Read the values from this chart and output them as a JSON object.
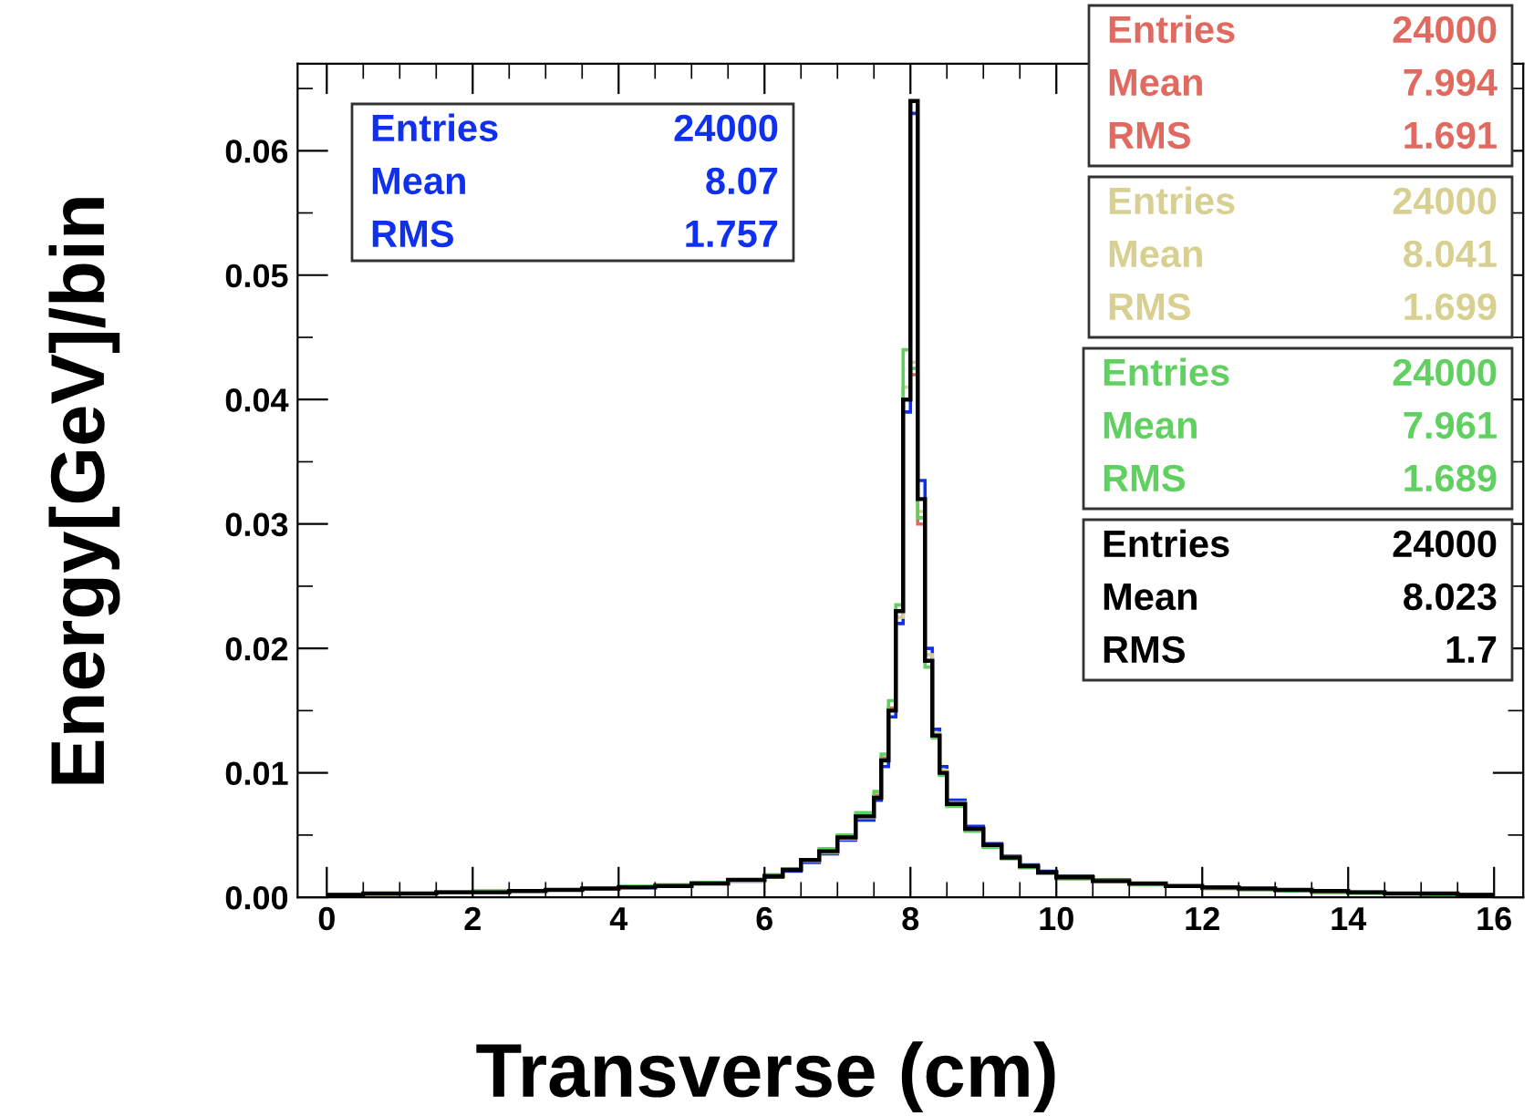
{
  "chart_data": {
    "type": "histogram",
    "xlabel": "Transverse (cm)",
    "ylabel": "Energy[GeV]/bin",
    "bins": [
      0,
      0.5,
      1,
      1.5,
      2,
      2.5,
      3,
      3.5,
      4,
      4.5,
      5,
      5.5,
      6,
      6.25,
      6.5,
      6.75,
      7,
      7.25,
      7.5,
      7.6,
      7.7,
      7.8,
      7.9,
      8.0,
      8.1,
      8.2,
      8.3,
      8.4,
      8.5,
      8.75,
      9,
      9.25,
      9.5,
      9.75,
      10,
      10.5,
      11,
      11.5,
      12,
      12.5,
      13,
      13.5,
      14,
      14.5,
      15,
      15.5,
      16
    ],
    "series": [
      {
        "color": "#1030f0",
        "values": [
          0.0002,
          0.0003,
          0.0003,
          0.0004,
          0.0004,
          0.0005,
          0.0006,
          0.0007,
          0.0008,
          0.0009,
          0.0011,
          0.0013,
          0.0016,
          0.0021,
          0.0028,
          0.0035,
          0.0046,
          0.0062,
          0.0078,
          0.0105,
          0.0145,
          0.022,
          0.039,
          0.063,
          0.0335,
          0.02,
          0.0135,
          0.0105,
          0.0078,
          0.0057,
          0.0043,
          0.0033,
          0.0026,
          0.0021,
          0.0017,
          0.0014,
          0.0011,
          0.0009,
          0.0008,
          0.0007,
          0.0006,
          0.0005,
          0.0004,
          0.0003,
          0.0003,
          0.0002
        ]
      },
      {
        "color": "#e06a60",
        "values": [
          0.0002,
          0.0003,
          0.0003,
          0.0004,
          0.0005,
          0.0005,
          0.0006,
          0.0007,
          0.0008,
          0.001,
          0.0011,
          0.0014,
          0.0018,
          0.0023,
          0.003,
          0.0038,
          0.0049,
          0.0066,
          0.0082,
          0.0112,
          0.0152,
          0.023,
          0.04,
          0.042,
          0.03,
          0.019,
          0.013,
          0.01,
          0.0074,
          0.0054,
          0.0041,
          0.0031,
          0.0024,
          0.0019,
          0.0015,
          0.0013,
          0.0011,
          0.0009,
          0.0007,
          0.0006,
          0.0005,
          0.0004,
          0.0004,
          0.0003,
          0.0002,
          0.0002
        ]
      },
      {
        "color": "#d8d090",
        "values": [
          0.0002,
          0.0002,
          0.0003,
          0.0004,
          0.0004,
          0.0005,
          0.0006,
          0.0007,
          0.0008,
          0.0009,
          0.0011,
          0.0013,
          0.0017,
          0.0022,
          0.0029,
          0.0036,
          0.0047,
          0.0064,
          0.008,
          0.011,
          0.015,
          0.0225,
          0.041,
          0.043,
          0.031,
          0.0195,
          0.0132,
          0.0102,
          0.0076,
          0.0055,
          0.0042,
          0.0032,
          0.0025,
          0.002,
          0.0016,
          0.0013,
          0.0011,
          0.0009,
          0.0008,
          0.0006,
          0.0005,
          0.0004,
          0.0004,
          0.0003,
          0.0003,
          0.0002
        ]
      },
      {
        "color": "#60d060",
        "values": [
          0.0002,
          0.0003,
          0.0003,
          0.0004,
          0.0005,
          0.0005,
          0.0006,
          0.0007,
          0.0009,
          0.001,
          0.0012,
          0.0014,
          0.0018,
          0.0023,
          0.003,
          0.0039,
          0.005,
          0.0068,
          0.0085,
          0.0115,
          0.0158,
          0.0235,
          0.044,
          0.0425,
          0.0305,
          0.0185,
          0.0128,
          0.0098,
          0.0073,
          0.0053,
          0.004,
          0.0031,
          0.0024,
          0.0019,
          0.0015,
          0.0013,
          0.001,
          0.0009,
          0.0007,
          0.0006,
          0.0005,
          0.0004,
          0.0003,
          0.0003,
          0.0002,
          0.0002
        ]
      },
      {
        "color": "#000000",
        "values": [
          0.0002,
          0.0003,
          0.0003,
          0.0004,
          0.0004,
          0.0005,
          0.0006,
          0.0007,
          0.0008,
          0.0009,
          0.0011,
          0.0014,
          0.0017,
          0.0022,
          0.003,
          0.0037,
          0.0048,
          0.0065,
          0.008,
          0.011,
          0.015,
          0.023,
          0.04,
          0.064,
          0.032,
          0.019,
          0.013,
          0.01,
          0.0075,
          0.0055,
          0.0042,
          0.0032,
          0.0025,
          0.002,
          0.0016,
          0.0013,
          0.0011,
          0.0009,
          0.0008,
          0.0007,
          0.0006,
          0.0005,
          0.0004,
          0.0003,
          0.0003,
          0.0002
        ]
      }
    ],
    "xlim": [
      -0.4,
      16.4
    ],
    "xticks": [
      0,
      2,
      4,
      6,
      8,
      10,
      12,
      14,
      16
    ],
    "ylim": [
      0,
      0.067
    ],
    "yticks": [
      {
        "value": 0,
        "label": "0.00"
      },
      {
        "value": 0.01,
        "label": "0.01"
      },
      {
        "value": 0.02,
        "label": "0.02"
      },
      {
        "value": 0.03,
        "label": "0.03"
      },
      {
        "value": 0.04,
        "label": "0.04"
      },
      {
        "value": 0.05,
        "label": "0.05"
      },
      {
        "value": 0.06,
        "label": "0.06"
      }
    ],
    "grid": false,
    "annotations": [
      "Entries 24000",
      "Mean 8.07",
      "RMS 1.757",
      "Entries 24000",
      "Mean 7.994",
      "RMS 1.691",
      "Entries 24000",
      "Mean 8.041",
      "RMS 1.699",
      "Entries 24000",
      "Mean 7.961",
      "RMS 1.689",
      "Entries 24000",
      "Mean 8.023",
      "RMS 1.7"
    ]
  }
}
